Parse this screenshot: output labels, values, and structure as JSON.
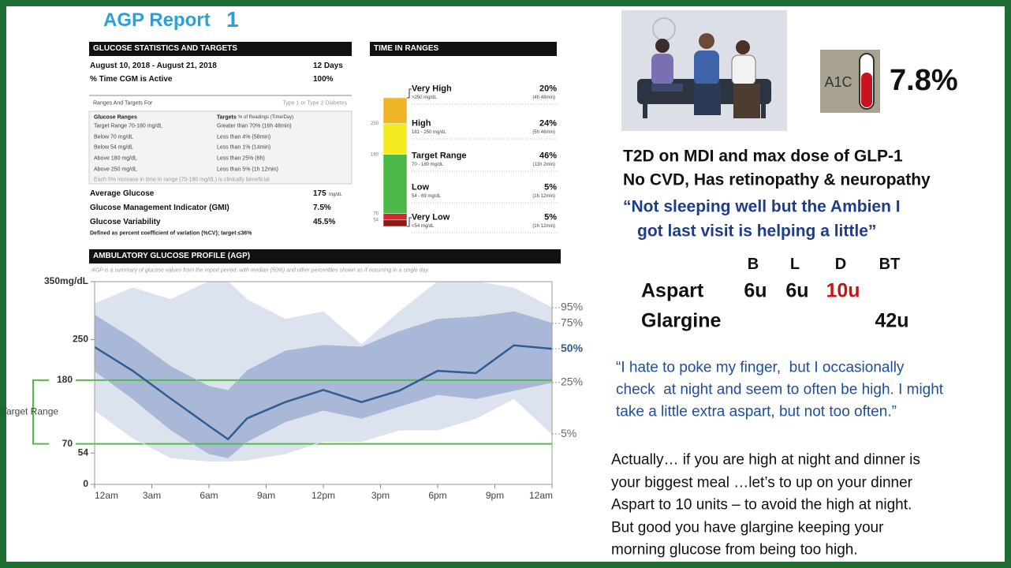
{
  "header": {
    "title": "AGP Report",
    "badge": "1"
  },
  "stats": {
    "heading": "GLUCOSE STATISTICS AND TARGETS",
    "rows": [
      [
        "August 10, 2018 - August 21, 2018",
        "12 Days"
      ],
      [
        "% Time CGM is Active",
        "100%"
      ]
    ],
    "ranges_heading": [
      "Ranges And Targets For",
      "Type 1 or Type 2 Diabetes"
    ],
    "targets_header": [
      "Glucose Ranges",
      "Targets",
      "% of Readings (Time/Day)"
    ],
    "targets": [
      [
        "Target Range 70-180 mg/dL",
        "Greater than 70% (16h 48min)"
      ],
      [
        "Below 70 mg/dL",
        "Less than 4% (58min)"
      ],
      [
        "Below 54 mg/dL",
        "Less than 1% (14min)"
      ],
      [
        "Above 180 mg/dL",
        "Less than 25% (6h)"
      ],
      [
        "Above 250 mg/dL",
        "Less than 5% (1h 12min)"
      ]
    ],
    "targets_note": "Each 5% increase in time in range (70-180 mg/dL) is clinically beneficial.",
    "metrics": [
      [
        "Average Glucose",
        "175",
        "mg/dL"
      ],
      [
        "Glucose Management Indicator (GMI)",
        "7.5%"
      ],
      [
        "Glucose Variability",
        "45.5%"
      ]
    ],
    "footnote": "Defined as percent coefficient of variation (%CV); target ≤36%"
  },
  "chart_data": [
    {
      "type": "stacked-bar",
      "title": "TIME IN RANGES",
      "categories": [
        "Very High",
        "High",
        "Target Range",
        "Low",
        "Very Low"
      ],
      "ranges": [
        ">250 mg/dL",
        "181 - 250 mg/dL",
        "70 - 180 mg/dL",
        "54 - 69 mg/dL",
        "<54 mg/dL"
      ],
      "values": [
        20,
        24,
        46,
        5,
        5
      ],
      "value_labels": [
        "20%",
        "24%",
        "46%",
        "5%",
        "5%"
      ],
      "durations": [
        "(4h 48min)",
        "(5h 46min)",
        "(11h 2min)",
        "(1h 12min)",
        "(1h 12min)"
      ],
      "colors": [
        "#f0b428",
        "#f3ea1f",
        "#4cb848",
        "#d7262b",
        "#8b1a1a"
      ],
      "boundary_labels": [
        250,
        180,
        70,
        54
      ]
    },
    {
      "type": "line",
      "title": "AMBULATORY GLUCOSE PROFILE (AGP)",
      "subtitle": "AGP is a summary of glucose values from the report period, with median (50%) and other percentiles shown as if occurring in a single day.",
      "x": [
        0,
        2,
        4,
        6,
        7,
        8,
        10,
        12,
        14,
        16,
        18,
        20,
        22,
        24
      ],
      "xlim": [
        0,
        24
      ],
      "xticks": [
        {
          "value": 0,
          "label": "12am"
        },
        {
          "value": 3,
          "label": "3am"
        },
        {
          "value": 6,
          "label": "6am"
        },
        {
          "value": 9,
          "label": "9am"
        },
        {
          "value": 12,
          "label": "12pm"
        },
        {
          "value": 15,
          "label": "3pm"
        },
        {
          "value": 18,
          "label": "6pm"
        },
        {
          "value": 21,
          "label": "9pm"
        },
        {
          "value": 24,
          "label": "12am"
        }
      ],
      "ylim": [
        0,
        350
      ],
      "yticks": [
        0,
        54,
        70,
        180,
        250,
        {
          "value": 350,
          "label": "350mg/dL"
        }
      ],
      "target_range": [
        70,
        180
      ],
      "target_range_label": "Target Range",
      "target_color": "#55b94b",
      "series": [
        {
          "name": "95%",
          "color": "#dde3ee",
          "values": [
            312,
            339,
            319,
            350,
            350,
            319,
            285,
            298,
            241,
            298,
            350,
            350,
            339,
            305
          ]
        },
        {
          "name": "75%",
          "color": "#a9b8d6",
          "values": [
            292,
            251,
            203,
            169,
            162,
            196,
            230,
            240,
            237,
            264,
            285,
            289,
            298,
            278
          ]
        },
        {
          "name": "50%",
          "color": "#2f5d95",
          "values": [
            237,
            196,
            148,
            101,
            78,
            114,
            142,
            163,
            142,
            162,
            196,
            192,
            240,
            234
          ]
        },
        {
          "name": "25%",
          "color": "#a9b8d6",
          "values": [
            196,
            148,
            94,
            53,
            46,
            74,
            108,
            128,
            114,
            135,
            155,
            148,
            162,
            176
          ]
        },
        {
          "name": "5%",
          "color": "#dde3ee",
          "values": [
            128,
            80,
            46,
            40,
            40,
            42,
            53,
            74,
            74,
            94,
            94,
            114,
            148,
            87
          ]
        }
      ]
    }
  ],
  "a1c": {
    "icon_label": "A1C",
    "value": "7.8%"
  },
  "case": {
    "lines": [
      "T2D on MDI and max dose of GLP-1",
      "No CVD, Has retinopathy & neuropathy"
    ],
    "quote": [
      "“Not sleeping well but the Ambien I",
      "got last visit is helping a little”"
    ]
  },
  "insulin": {
    "columns": [
      "B",
      "L",
      "D",
      "BT"
    ],
    "rows": [
      {
        "name": "Aspart",
        "doses": [
          "6u",
          "6u",
          "10u",
          null
        ]
      },
      {
        "name": "Glargine",
        "doses": [
          null,
          null,
          null,
          "42u"
        ]
      }
    ]
  },
  "patient_quote": [
    "“I hate to poke my finger,  but I occasionally",
    "check  at night and seem to often be high. I might",
    "take a little extra aspart, but not too often.”"
  ],
  "response": [
    "Actually… if you are high at night and dinner is",
    "your biggest meal …let’s to up on your dinner",
    "Aspart to 10 units – to avoid the high at night.",
    "But good you have glargine keeping your",
    "morning glucose from being too high."
  ]
}
